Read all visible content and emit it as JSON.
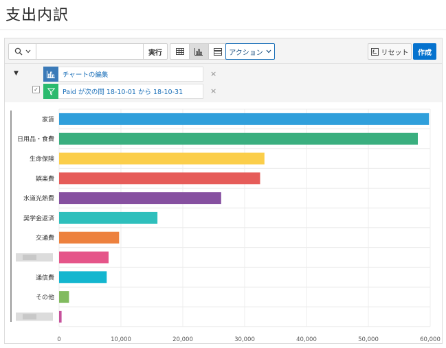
{
  "page": {
    "title": "支出内訳"
  },
  "toolbar": {
    "search_value": "",
    "go_label": "実行",
    "actions_label": "アクション",
    "reset_label": "リセット",
    "create_label": "作成"
  },
  "settings": {
    "chart_label": "チャートの編集",
    "filter_label": "Paid が次の間 18-10-01 から 18-10-31",
    "remove_glyph": "×",
    "toggle_glyph": "▼",
    "check_glyph": "✓"
  },
  "colors": {
    "accent": "#0572ce",
    "chart_icon_bg": "#3a7ab8",
    "filter_icon_bg": "#2bba6e"
  },
  "chart_data": {
    "type": "bar",
    "orientation": "horizontal",
    "categories": [
      "家賃",
      "日用品・食費",
      "生命保険",
      "娯楽費",
      "水道光熱費",
      "奨学金返済",
      "交通費",
      "",
      "通信費",
      "その他",
      ""
    ],
    "values": [
      59800,
      58000,
      33200,
      32500,
      26200,
      15900,
      9700,
      8000,
      7700,
      1600,
      400
    ],
    "colors": [
      "#309fdb",
      "#3aaf7f",
      "#fbce4a",
      "#e65c59",
      "#8650a0",
      "#2ebfbc",
      "#ed813e",
      "#e55589",
      "#13b6cf",
      "#81bb5f",
      "#c6519b"
    ],
    "xlim": [
      0,
      60000
    ],
    "xticks": [
      "0",
      "10,000",
      "20,000",
      "30,000",
      "40,000",
      "50,000",
      "60,000"
    ],
    "grid": true,
    "legend": "none"
  }
}
